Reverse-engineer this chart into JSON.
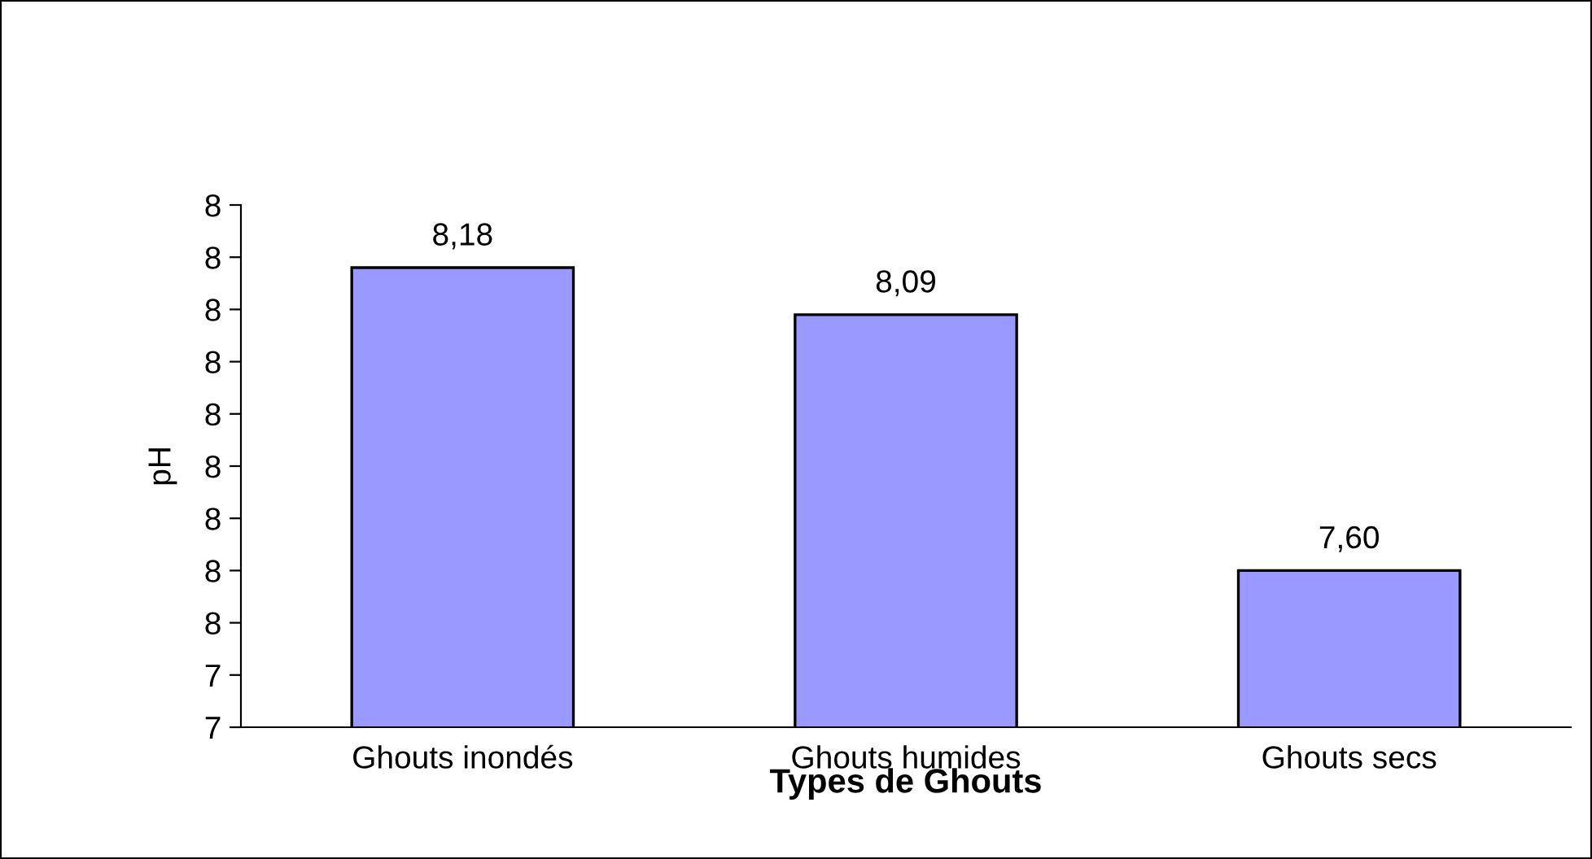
{
  "chart_data": {
    "type": "bar",
    "xlabel": "Types de Ghouts",
    "ylabel": "pH",
    "categories": [
      "Ghouts inondés",
      "Ghouts humides",
      "Ghouts secs"
    ],
    "values": [
      8.18,
      8.09,
      7.6
    ],
    "value_labels": [
      "8,18",
      "8,09",
      "7,60"
    ],
    "color": "#9999ff",
    "ylim": [
      7.3,
      8.3
    ],
    "yticks": [
      {
        "value": 7.3,
        "label": "7"
      },
      {
        "value": 7.4,
        "label": "7"
      },
      {
        "value": 7.5,
        "label": "8"
      },
      {
        "value": 7.6,
        "label": "8"
      },
      {
        "value": 7.7,
        "label": "8"
      },
      {
        "value": 7.8,
        "label": "8"
      },
      {
        "value": 7.9,
        "label": "8"
      },
      {
        "value": 8.0,
        "label": "8"
      },
      {
        "value": 8.1,
        "label": "8"
      },
      {
        "value": 8.2,
        "label": "8"
      },
      {
        "value": 8.3,
        "label": "8"
      }
    ],
    "grid": false
  }
}
